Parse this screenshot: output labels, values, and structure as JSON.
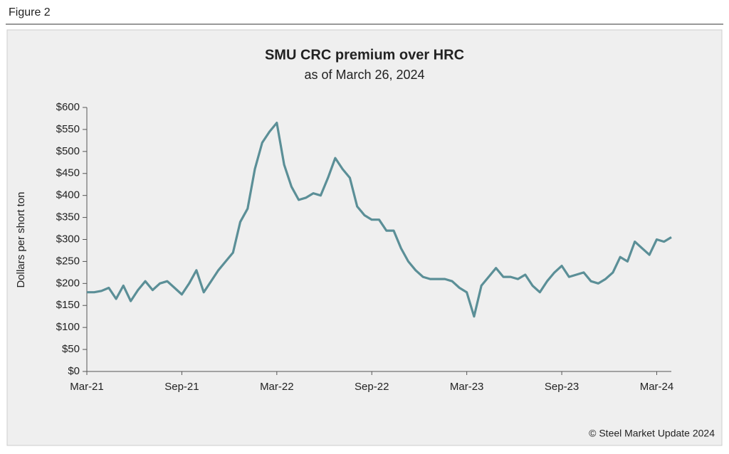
{
  "header": {
    "label": "Figure 2"
  },
  "chart_data": {
    "type": "line",
    "title": "SMU CRC premium over HRC",
    "subtitle": "as of March 26, 2024",
    "y_label": "Dollars per short ton",
    "categories": [
      "Mar-21",
      null,
      null,
      null,
      null,
      null,
      null,
      null,
      null,
      null,
      null,
      null,
      null,
      "Sep-21",
      null,
      null,
      null,
      null,
      null,
      null,
      null,
      null,
      null,
      null,
      null,
      null,
      "Mar-22",
      null,
      null,
      null,
      null,
      null,
      null,
      null,
      null,
      null,
      null,
      null,
      null,
      "Sep-22",
      null,
      null,
      null,
      null,
      null,
      null,
      null,
      null,
      null,
      null,
      null,
      null,
      "Mar-23",
      null,
      null,
      null,
      null,
      null,
      null,
      null,
      null,
      null,
      null,
      null,
      null,
      "Sep-23",
      null,
      null,
      null,
      null,
      null,
      null,
      null,
      null,
      null,
      null,
      null,
      null,
      "Mar-24",
      null,
      null
    ],
    "series": [
      {
        "name": "CRC premium over HRC",
        "color": "#5b8f97",
        "values": [
          180,
          180,
          183,
          190,
          165,
          195,
          160,
          185,
          205,
          185,
          200,
          205,
          190,
          175,
          200,
          230,
          180,
          205,
          230,
          250,
          270,
          340,
          370,
          460,
          520,
          545,
          565,
          470,
          420,
          390,
          395,
          405,
          400,
          440,
          485,
          460,
          440,
          375,
          355,
          345,
          345,
          320,
          320,
          280,
          250,
          230,
          215,
          210,
          210,
          210,
          205,
          190,
          180,
          125,
          195,
          215,
          235,
          215,
          215,
          210,
          220,
          195,
          180,
          205,
          225,
          240,
          215,
          220,
          225,
          205,
          200,
          210,
          225,
          260,
          250,
          295,
          280,
          265,
          300,
          295,
          305
        ]
      }
    ],
    "ylim": [
      0,
      600
    ],
    "yticks": [
      {
        "value": 0,
        "label": "$0"
      },
      {
        "value": 50,
        "label": "$50"
      },
      {
        "value": 100,
        "label": "$100"
      },
      {
        "value": 150,
        "label": "$150"
      },
      {
        "value": 200,
        "label": "$200"
      },
      {
        "value": 250,
        "label": "$250"
      },
      {
        "value": 300,
        "label": "$300"
      },
      {
        "value": 350,
        "label": "$350"
      },
      {
        "value": 400,
        "label": "$400"
      },
      {
        "value": 450,
        "label": "$450"
      },
      {
        "value": 500,
        "label": "$500"
      },
      {
        "value": 550,
        "label": "$550"
      },
      {
        "value": 600,
        "label": "$600"
      }
    ],
    "source": "© Steel Market Update 2024"
  }
}
